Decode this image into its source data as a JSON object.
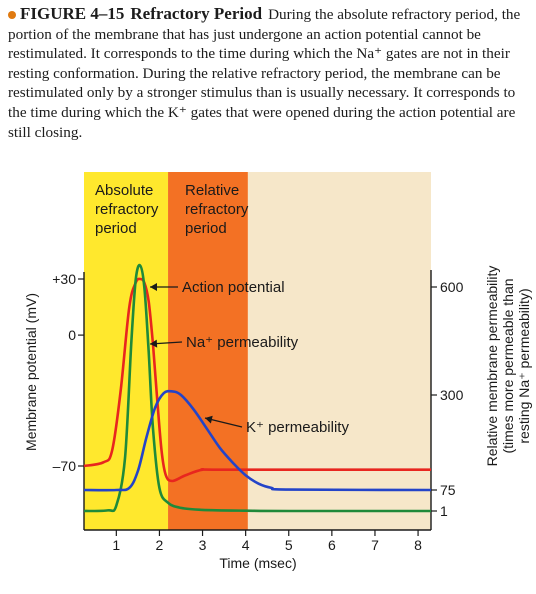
{
  "caption": {
    "figure_label": "FIGURE 4–15",
    "figure_title": "Refractory Period",
    "text": "During the absolute refractory period, the portion of the membrane that has just undergone an action potential cannot be restimulated. It corresponds to the time during which the Na⁺ gates are not in their resting conformation. During the relative refractory period, the membrane can be restimulated only by a stronger stimulus than is usually necessary. It corresponds to the time during which the K⁺ gates that were opened during the action potential are still closing."
  },
  "chart_data": {
    "type": "line",
    "xlabel": "Time (msec)",
    "xlim": [
      0.25,
      8.3
    ],
    "x_ticks": [
      "1",
      "2",
      "3",
      "4",
      "5",
      "6",
      "7",
      "8"
    ],
    "left_axis": {
      "label": "Membrane potential (mV)",
      "tick_labels": [
        "+30",
        "0",
        "–70"
      ],
      "tick_values": [
        30,
        0,
        -70
      ],
      "ylim": [
        -90,
        42
      ]
    },
    "right_axis": {
      "label_lines": [
        "Relative membrane permeability",
        "(times more permeable than",
        "resting Na⁺ permeability)"
      ],
      "tick_labels": [
        "600",
        "300",
        "75",
        "1"
      ],
      "tick_values": [
        600,
        300,
        75,
        1
      ]
    },
    "regions": [
      {
        "label_lines": [
          "Absolute",
          "refractory",
          "period"
        ],
        "x_start": 0.25,
        "x_end": 2.2,
        "color": "#ffe81f"
      },
      {
        "label_lines": [
          "Relative",
          "refractory",
          "period"
        ],
        "x_start": 2.2,
        "x_end": 4.05,
        "color": "#f26a1b"
      }
    ],
    "series": [
      {
        "name": "Action potential",
        "axis": "left",
        "color": "#e8261e",
        "x": [
          0.25,
          0.7,
          0.9,
          1.1,
          1.3,
          1.45,
          1.55,
          1.65,
          1.75,
          1.85,
          1.95,
          2.05,
          2.15,
          2.3,
          2.6,
          3.0,
          3.5,
          8.3
        ],
        "y": [
          -70,
          -68,
          -62,
          -30,
          15,
          28,
          30,
          28,
          18,
          -5,
          -35,
          -62,
          -75,
          -78,
          -75,
          -72,
          -72,
          -72
        ]
      },
      {
        "name": "Na⁺ permeability",
        "axis": "right",
        "color": "#1f8a3a",
        "x": [
          0.25,
          0.8,
          1.0,
          1.2,
          1.35,
          1.45,
          1.55,
          1.65,
          1.75,
          1.85,
          2.0,
          2.2,
          2.5,
          3.0,
          4.0,
          5.0,
          8.3
        ],
        "y": [
          1,
          3,
          20,
          150,
          450,
          620,
          660,
          600,
          420,
          220,
          80,
          30,
          12,
          5,
          2,
          1,
          1
        ]
      },
      {
        "name": "K⁺ permeability",
        "axis": "right",
        "color": "#2444c8",
        "x": [
          0.25,
          1.0,
          1.3,
          1.5,
          1.7,
          1.9,
          2.1,
          2.3,
          2.5,
          2.8,
          3.1,
          3.4,
          3.7,
          4.0,
          4.3,
          4.6,
          5.0,
          8.3
        ],
        "y": [
          75,
          75,
          80,
          120,
          200,
          270,
          305,
          310,
          300,
          265,
          220,
          175,
          140,
          110,
          90,
          80,
          76,
          75
        ]
      }
    ],
    "annotations": [
      {
        "text": "Action potential",
        "series": "Action potential"
      },
      {
        "text": "Na⁺ permeability",
        "series": "Na⁺ permeability"
      },
      {
        "text": "K⁺ permeability",
        "series": "K⁺ permeability"
      }
    ]
  },
  "colors": {
    "background_panel": "#f6e7c9",
    "absolute_region": "#ffe81f",
    "relative_region": "#f26a1b",
    "action_potential": "#e8261e",
    "na_permeability": "#1f8a3a",
    "k_permeability": "#2444c8",
    "caption_bullet": "#e07a10"
  }
}
